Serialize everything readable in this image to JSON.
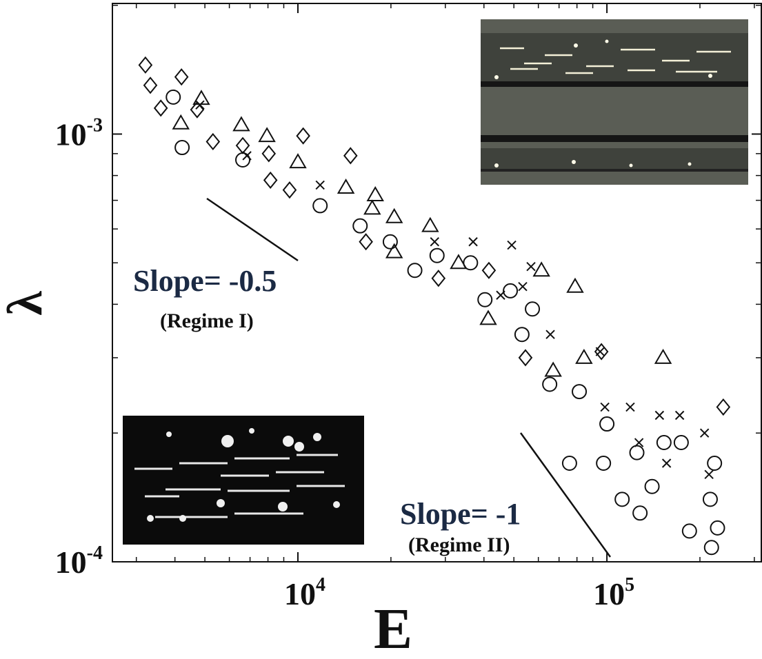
{
  "chart_data": {
    "type": "scatter",
    "x_label": "E",
    "y_label": "λ",
    "xlog": true,
    "ylog": true,
    "xlim": [
      2510,
      316000
    ],
    "ylim": [
      0.0001,
      0.00202
    ],
    "xticks": [
      {
        "value": 10000,
        "label": "10",
        "exponent": "4"
      },
      {
        "value": 100000,
        "label": "10",
        "exponent": "5"
      }
    ],
    "yticks": [
      {
        "value": 0.0001,
        "label": "10",
        "exponent": "-4"
      },
      {
        "value": 0.001,
        "label": "10",
        "exponent": "-3"
      }
    ],
    "xminorticks": [
      3000,
      4000,
      5000,
      6000,
      7000,
      8000,
      9000,
      20000,
      30000,
      40000,
      50000,
      60000,
      70000,
      80000,
      90000,
      200000,
      300000
    ],
    "yminorticks": [
      0.0002,
      0.0003,
      0.0004,
      0.0005,
      0.0006,
      0.0007,
      0.0008,
      0.0009,
      0.002
    ],
    "annotations": [
      "Slope= -0.5",
      "(Regime I)",
      "Slope= -1",
      "(Regime II)"
    ],
    "series": [
      {
        "marker": "diamond",
        "color": "#111",
        "x": [
          3210,
          3330,
          4200,
          3600,
          4720,
          5310,
          6630,
          8050,
          8150,
          9400,
          10400,
          14800,
          16600,
          28500,
          41500,
          54500,
          96000,
          238000
        ],
        "values": [
          0.00145,
          0.0013,
          0.00136,
          0.00115,
          0.00114,
          0.00096,
          0.00094,
          0.0009,
          0.00078,
          0.00074,
          0.00099,
          0.00089,
          0.00056,
          0.00046,
          0.00048,
          0.0003,
          0.00031,
          0.00023
        ]
      },
      {
        "marker": "circle",
        "color": "#111",
        "x": [
          3950,
          4220,
          6630,
          11800,
          15900,
          19900,
          23900,
          28200,
          36200,
          40300,
          48700,
          57400,
          53100,
          65300,
          81400,
          100000,
          75700,
          97500,
          125000,
          153000,
          112000,
          140000,
          174000,
          223000,
          216000,
          128000,
          185000,
          228000,
          218000
        ],
        "values": [
          0.00122,
          0.00093,
          0.00087,
          0.00068,
          0.00061,
          0.00056,
          0.00048,
          0.00052,
          0.0005,
          0.00041,
          0.00043,
          0.00039,
          0.00034,
          0.00026,
          0.00025,
          0.00021,
          0.00017,
          0.00017,
          0.00018,
          0.00019,
          0.00014,
          0.00015,
          0.00019,
          0.00017,
          0.00014,
          0.00013,
          0.000118,
          0.00012,
          0.000108
        ]
      },
      {
        "marker": "triangle",
        "color": "#111",
        "x": [
          4870,
          4180,
          6560,
          7940,
          10000,
          14300,
          17800,
          17400,
          20500,
          26800,
          20500,
          33100,
          41300,
          61400,
          78900,
          84300,
          67000,
          152000
        ],
        "values": [
          0.00121,
          0.00106,
          0.00105,
          0.00099,
          0.00086,
          0.00075,
          0.00072,
          0.00067,
          0.00064,
          0.00061,
          0.00053,
          0.0005,
          0.00037,
          0.00048,
          0.00044,
          0.0003,
          0.00028,
          0.0003
        ]
      },
      {
        "marker": "cross",
        "color": "#111",
        "x": [
          4820,
          6840,
          11800,
          27700,
          36900,
          49200,
          56800,
          45300,
          53400,
          65600,
          95100,
          98500,
          119000,
          148000,
          172000,
          127000,
          156000,
          207000,
          214000
        ],
        "values": [
          0.00117,
          0.00089,
          0.00076,
          0.00056,
          0.00056,
          0.00055,
          0.00049,
          0.00042,
          0.00044,
          0.00034,
          0.00031,
          0.00023,
          0.00023,
          0.00022,
          0.00022,
          0.00019,
          0.00017,
          0.0002,
          0.00016
        ]
      }
    ]
  }
}
